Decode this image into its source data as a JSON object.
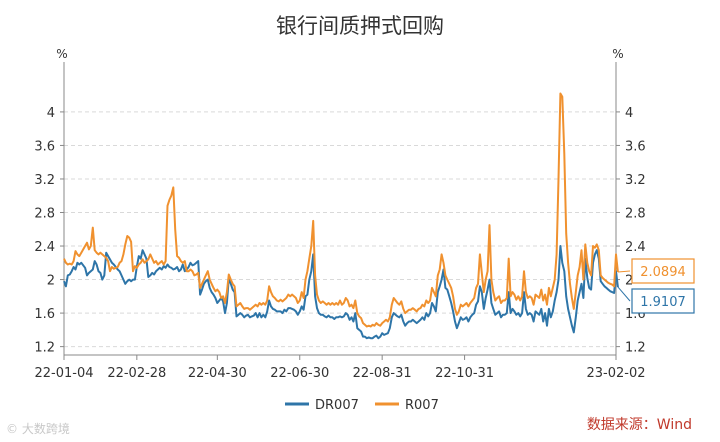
{
  "chart_data": {
    "type": "line",
    "title": "银行间质押式回购",
    "y_unit_left": "%",
    "y_unit_right": "%",
    "ylim": [
      1.1,
      4.5
    ],
    "yticks": [
      1.2,
      1.6,
      2,
      2.4,
      2.8,
      3.2,
      3.6,
      4
    ],
    "x_tick_labels": [
      "22-01-04",
      "22-02-28",
      "22-04-30",
      "22-06-30",
      "22-08-31",
      "22-10-31",
      "23-02-02"
    ],
    "x_tick_positions": [
      0,
      38,
      80,
      123,
      166,
      209,
      288
    ],
    "x_count": 289,
    "legend": {
      "position": "bottom"
    },
    "series": [
      {
        "name": "DR007",
        "color": "#2e75a8",
        "end_label": "1.9107",
        "values": [
          1.98,
          1.92,
          2.05,
          2.06,
          2.1,
          2.15,
          2.12,
          2.2,
          2.18,
          2.2,
          2.17,
          2.14,
          2.05,
          2.08,
          2.1,
          2.12,
          2.22,
          2.18,
          2.1,
          2.08,
          2.0,
          2.05,
          2.32,
          2.28,
          2.24,
          2.2,
          2.18,
          2.15,
          2.12,
          2.1,
          2.05,
          2.0,
          1.95,
          1.98,
          2.0,
          1.98,
          2.0,
          2.0,
          2.15,
          2.28,
          2.25,
          2.35,
          2.3,
          2.25,
          2.03,
          2.05,
          2.08,
          2.06,
          2.1,
          2.12,
          2.14,
          2.12,
          2.16,
          2.14,
          2.18,
          2.15,
          2.14,
          2.12,
          2.13,
          2.15,
          2.1,
          2.12,
          2.18,
          2.1,
          2.12,
          2.15,
          2.2,
          2.17,
          2.18,
          2.2,
          2.22,
          1.82,
          1.88,
          1.95,
          1.98,
          2.0,
          1.9,
          1.85,
          1.82,
          1.78,
          1.72,
          1.75,
          1.78,
          1.74,
          1.6,
          1.72,
          2.02,
          1.95,
          1.88,
          1.85,
          1.56,
          1.58,
          1.6,
          1.58,
          1.55,
          1.57,
          1.58,
          1.55,
          1.56,
          1.57,
          1.6,
          1.55,
          1.6,
          1.55,
          1.58,
          1.55,
          1.62,
          1.75,
          1.68,
          1.65,
          1.64,
          1.62,
          1.62,
          1.62,
          1.6,
          1.64,
          1.62,
          1.66,
          1.66,
          1.65,
          1.64,
          1.62,
          1.58,
          1.62,
          1.68,
          1.64,
          1.8,
          1.82,
          2.0,
          2.1,
          2.3,
          1.8,
          1.66,
          1.6,
          1.58,
          1.58,
          1.56,
          1.55,
          1.57,
          1.55,
          1.55,
          1.53,
          1.55,
          1.55,
          1.56,
          1.55,
          1.56,
          1.6,
          1.58,
          1.52,
          1.55,
          1.5,
          1.6,
          1.42,
          1.4,
          1.38,
          1.32,
          1.32,
          1.3,
          1.31,
          1.3,
          1.3,
          1.32,
          1.33,
          1.3,
          1.32,
          1.36,
          1.34,
          1.35,
          1.36,
          1.42,
          1.55,
          1.6,
          1.58,
          1.56,
          1.55,
          1.58,
          1.5,
          1.45,
          1.48,
          1.5,
          1.5,
          1.52,
          1.5,
          1.48,
          1.5,
          1.52,
          1.55,
          1.52,
          1.6,
          1.56,
          1.6,
          1.72,
          1.68,
          1.62,
          1.85,
          1.92,
          2.0,
          2.12,
          1.9,
          1.88,
          1.8,
          1.72,
          1.62,
          1.5,
          1.42,
          1.48,
          1.55,
          1.52,
          1.53,
          1.55,
          1.5,
          1.55,
          1.58,
          1.6,
          1.7,
          1.74,
          1.92,
          1.85,
          1.65,
          1.78,
          1.88,
          2.0,
          1.72,
          1.65,
          1.58,
          1.6,
          1.62,
          1.55,
          1.58,
          1.58,
          1.6,
          1.85,
          1.6,
          1.65,
          1.62,
          1.58,
          1.6,
          1.56,
          1.6,
          1.85,
          1.65,
          1.58,
          1.6,
          1.58,
          1.5,
          1.62,
          1.6,
          1.58,
          1.65,
          1.5,
          1.6,
          1.45,
          1.65,
          1.55,
          1.62,
          1.75,
          1.85,
          2.0,
          2.4,
          2.2,
          2.1,
          1.8,
          1.65,
          1.55,
          1.45,
          1.37,
          1.55,
          1.75,
          1.85,
          1.95,
          1.78,
          2.25,
          2.02,
          1.9,
          1.88,
          2.2,
          2.3,
          2.35,
          2.25,
          1.98,
          1.95,
          1.92,
          1.9,
          1.88,
          1.86,
          1.85,
          1.84,
          2.1,
          1.91
        ]
      },
      {
        "name": "R007",
        "color": "#f0912f",
        "end_label": "2.0894",
        "values": [
          2.25,
          2.2,
          2.18,
          2.19,
          2.18,
          2.22,
          2.34,
          2.3,
          2.28,
          2.32,
          2.36,
          2.4,
          2.44,
          2.36,
          2.4,
          2.62,
          2.35,
          2.32,
          2.3,
          2.32,
          2.3,
          2.28,
          2.26,
          2.22,
          2.1,
          2.15,
          2.13,
          2.14,
          2.15,
          2.2,
          2.22,
          2.3,
          2.42,
          2.52,
          2.5,
          2.45,
          2.1,
          2.16,
          2.14,
          2.18,
          2.2,
          2.24,
          2.2,
          2.22,
          2.24,
          2.3,
          2.25,
          2.2,
          2.22,
          2.18,
          2.2,
          2.22,
          2.18,
          2.22,
          2.88,
          2.95,
          3.0,
          3.1,
          2.6,
          2.28,
          2.26,
          2.22,
          2.2,
          2.22,
          2.1,
          2.1,
          2.12,
          2.1,
          2.05,
          2.06,
          2.08,
          1.9,
          1.95,
          2.0,
          2.05,
          2.1,
          2.0,
          1.95,
          1.9,
          1.86,
          1.88,
          1.85,
          1.78,
          1.8,
          1.72,
          1.85,
          2.06,
          2.0,
          1.95,
          1.92,
          1.68,
          1.7,
          1.72,
          1.68,
          1.65,
          1.66,
          1.66,
          1.64,
          1.66,
          1.68,
          1.7,
          1.68,
          1.72,
          1.7,
          1.72,
          1.7,
          1.75,
          1.92,
          1.85,
          1.8,
          1.78,
          1.75,
          1.74,
          1.76,
          1.74,
          1.76,
          1.78,
          1.82,
          1.8,
          1.82,
          1.8,
          1.78,
          1.72,
          1.75,
          1.85,
          1.78,
          2.0,
          2.1,
          2.25,
          2.4,
          2.7,
          2.05,
          1.82,
          1.75,
          1.72,
          1.74,
          1.72,
          1.7,
          1.72,
          1.7,
          1.72,
          1.7,
          1.72,
          1.7,
          1.75,
          1.7,
          1.72,
          1.78,
          1.75,
          1.68,
          1.7,
          1.66,
          1.75,
          1.6,
          1.56,
          1.54,
          1.48,
          1.46,
          1.44,
          1.45,
          1.44,
          1.46,
          1.45,
          1.48,
          1.46,
          1.45,
          1.48,
          1.5,
          1.52,
          1.5,
          1.55,
          1.7,
          1.78,
          1.75,
          1.72,
          1.7,
          1.74,
          1.65,
          1.6,
          1.62,
          1.64,
          1.64,
          1.66,
          1.64,
          1.62,
          1.65,
          1.66,
          1.7,
          1.68,
          1.75,
          1.72,
          1.75,
          1.9,
          1.85,
          1.8,
          2.05,
          2.12,
          2.3,
          2.2,
          2.05,
          2.0,
          1.95,
          1.9,
          1.8,
          1.65,
          1.58,
          1.62,
          1.7,
          1.68,
          1.7,
          1.72,
          1.68,
          1.72,
          1.75,
          1.78,
          1.9,
          1.95,
          2.3,
          2.08,
          1.85,
          2.0,
          2.1,
          2.65,
          2.0,
          1.85,
          1.75,
          1.78,
          1.8,
          1.72,
          1.75,
          1.75,
          1.78,
          2.25,
          1.8,
          1.85,
          1.82,
          1.76,
          1.8,
          1.75,
          1.8,
          2.1,
          1.85,
          1.78,
          1.8,
          1.78,
          1.7,
          1.82,
          1.8,
          1.78,
          1.88,
          1.75,
          1.82,
          1.7,
          1.9,
          1.8,
          1.9,
          2.0,
          2.3,
          3.2,
          4.22,
          4.18,
          3.5,
          2.55,
          2.2,
          1.95,
          1.78,
          1.65,
          1.85,
          2.05,
          2.15,
          2.35,
          2.0,
          2.42,
          2.2,
          2.1,
          2.05,
          2.4,
          2.38,
          2.42,
          2.35,
          2.05,
          2.02,
          2.0,
          1.98,
          1.96,
          1.95,
          1.94,
          1.92,
          2.3,
          2.09
        ]
      }
    ]
  },
  "source_text": "数据来源：Wind",
  "watermark_text": "© 大数跨境"
}
